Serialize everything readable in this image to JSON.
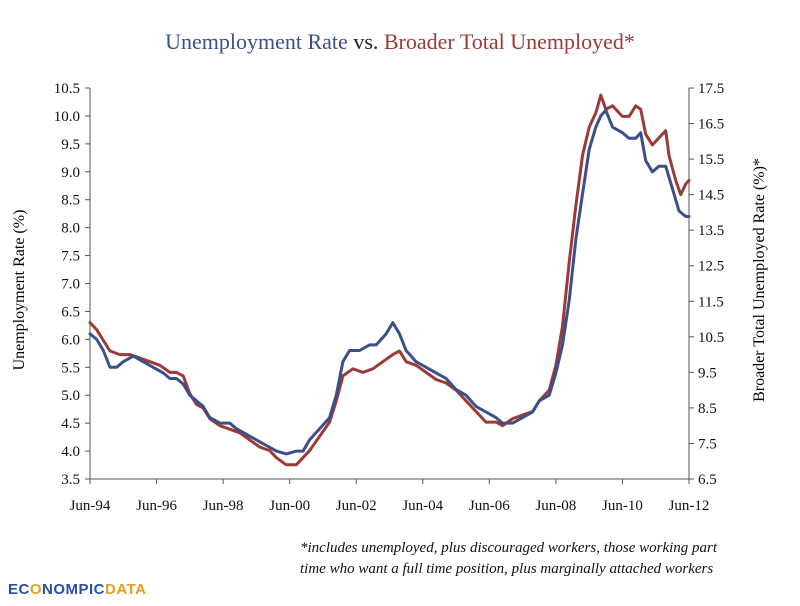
{
  "logo": {
    "part1": "EC",
    "part2": "O",
    "part3": "NOMPIC",
    "part4": "DATA"
  },
  "footnote": "*includes unemployed, plus discouraged workers, those working part time who want a full time position, plus marginally attached workers",
  "colors": {
    "series1": "#3b4f8a",
    "series2": "#9c3a36",
    "axis": "#555555",
    "logo_blue": "#2a4fa0",
    "logo_orange": "#e0a020"
  },
  "chart_data": {
    "type": "line",
    "title": "",
    "title_parts": [
      {
        "text": "Unemployment Rate",
        "color": "#3b4f8a"
      },
      {
        "text": " vs. ",
        "color": "#222222"
      },
      {
        "text": "Broader Total Unemployed*",
        "color": "#9c3a36"
      }
    ],
    "xlabel": "",
    "ylabel_left": "Unemployment Rate (%)",
    "ylabel_right": "Broader Total Unemployed Rate (%)*",
    "x_tick_labels": [
      "Jun-94",
      "Jun-96",
      "Jun-98",
      "Jun-00",
      "Jun-02",
      "Jun-04",
      "Jun-06",
      "Jun-08",
      "Jun-10",
      "Jun-12"
    ],
    "x_range": [
      1994.4,
      2012.4
    ],
    "ylim_left": [
      3.5,
      10.5
    ],
    "ylim_right": [
      6.5,
      17.5
    ],
    "y_ticks_left": [
      "3.5",
      "4.0",
      "4.5",
      "5.0",
      "5.5",
      "6.0",
      "6.5",
      "7.0",
      "7.5",
      "8.0",
      "8.5",
      "9.0",
      "9.5",
      "10.0",
      "10.5"
    ],
    "y_ticks_right": [
      "6.5",
      "7.5",
      "8.5",
      "9.5",
      "10.5",
      "11.5",
      "12.5",
      "13.5",
      "14.5",
      "15.5",
      "16.5",
      "17.5"
    ],
    "grid": false,
    "legend": "none",
    "series": [
      {
        "axis": "left",
        "points": [
          [
            1994.4,
            6.1
          ],
          [
            1994.6,
            6.0
          ],
          [
            1994.8,
            5.8
          ],
          [
            1995.0,
            5.5
          ],
          [
            1995.2,
            5.5
          ],
          [
            1995.4,
            5.6
          ],
          [
            1995.7,
            5.7
          ],
          [
            1996.0,
            5.6
          ],
          [
            1996.3,
            5.5
          ],
          [
            1996.6,
            5.4
          ],
          [
            1996.8,
            5.3
          ],
          [
            1997.0,
            5.3
          ],
          [
            1997.2,
            5.2
          ],
          [
            1997.4,
            5.0
          ],
          [
            1997.6,
            4.9
          ],
          [
            1997.8,
            4.8
          ],
          [
            1998.0,
            4.6
          ],
          [
            1998.3,
            4.5
          ],
          [
            1998.6,
            4.5
          ],
          [
            1998.8,
            4.4
          ],
          [
            1999.1,
            4.3
          ],
          [
            1999.4,
            4.2
          ],
          [
            1999.7,
            4.1
          ],
          [
            2000.0,
            4.0
          ],
          [
            2000.3,
            3.95
          ],
          [
            2000.6,
            4.0
          ],
          [
            2000.8,
            4.0
          ],
          [
            2001.0,
            4.2
          ],
          [
            2001.3,
            4.4
          ],
          [
            2001.6,
            4.6
          ],
          [
            2001.8,
            5.0
          ],
          [
            2002.0,
            5.6
          ],
          [
            2002.2,
            5.8
          ],
          [
            2002.5,
            5.8
          ],
          [
            2002.8,
            5.9
          ],
          [
            2003.0,
            5.9
          ],
          [
            2003.3,
            6.1
          ],
          [
            2003.5,
            6.3
          ],
          [
            2003.7,
            6.1
          ],
          [
            2003.9,
            5.8
          ],
          [
            2004.2,
            5.6
          ],
          [
            2004.5,
            5.5
          ],
          [
            2004.8,
            5.4
          ],
          [
            2005.1,
            5.3
          ],
          [
            2005.4,
            5.1
          ],
          [
            2005.7,
            5.0
          ],
          [
            2006.0,
            4.8
          ],
          [
            2006.3,
            4.7
          ],
          [
            2006.6,
            4.6
          ],
          [
            2006.8,
            4.5
          ],
          [
            2007.1,
            4.5
          ],
          [
            2007.4,
            4.6
          ],
          [
            2007.7,
            4.7
          ],
          [
            2007.9,
            4.9
          ],
          [
            2008.2,
            5.0
          ],
          [
            2008.4,
            5.4
          ],
          [
            2008.6,
            5.9
          ],
          [
            2008.8,
            6.7
          ],
          [
            2009.0,
            7.8
          ],
          [
            2009.2,
            8.6
          ],
          [
            2009.4,
            9.4
          ],
          [
            2009.6,
            9.8
          ],
          [
            2009.75,
            10.0
          ],
          [
            2009.9,
            10.1
          ],
          [
            2010.1,
            9.8
          ],
          [
            2010.4,
            9.7
          ],
          [
            2010.6,
            9.6
          ],
          [
            2010.8,
            9.6
          ],
          [
            2010.95,
            9.7
          ],
          [
            2011.1,
            9.2
          ],
          [
            2011.3,
            9.0
          ],
          [
            2011.5,
            9.1
          ],
          [
            2011.7,
            9.1
          ],
          [
            2011.9,
            8.7
          ],
          [
            2012.1,
            8.3
          ],
          [
            2012.3,
            8.2
          ],
          [
            2012.4,
            8.2
          ]
        ]
      },
      {
        "axis": "right",
        "points": [
          [
            1994.4,
            10.9
          ],
          [
            1994.6,
            10.7
          ],
          [
            1994.8,
            10.4
          ],
          [
            1995.0,
            10.1
          ],
          [
            1995.3,
            10.0
          ],
          [
            1995.6,
            10.0
          ],
          [
            1995.9,
            9.9
          ],
          [
            1996.2,
            9.8
          ],
          [
            1996.5,
            9.7
          ],
          [
            1996.8,
            9.5
          ],
          [
            1997.0,
            9.5
          ],
          [
            1997.2,
            9.4
          ],
          [
            1997.4,
            8.9
          ],
          [
            1997.6,
            8.6
          ],
          [
            1997.8,
            8.5
          ],
          [
            1998.0,
            8.2
          ],
          [
            1998.3,
            8.0
          ],
          [
            1998.6,
            7.9
          ],
          [
            1998.9,
            7.8
          ],
          [
            1999.2,
            7.6
          ],
          [
            1999.5,
            7.4
          ],
          [
            1999.8,
            7.3
          ],
          [
            2000.0,
            7.1
          ],
          [
            2000.3,
            6.9
          ],
          [
            2000.6,
            6.9
          ],
          [
            2000.8,
            7.1
          ],
          [
            2001.0,
            7.3
          ],
          [
            2001.3,
            7.7
          ],
          [
            2001.6,
            8.1
          ],
          [
            2001.8,
            8.7
          ],
          [
            2002.0,
            9.4
          ],
          [
            2002.3,
            9.6
          ],
          [
            2002.6,
            9.5
          ],
          [
            2002.9,
            9.6
          ],
          [
            2003.2,
            9.8
          ],
          [
            2003.5,
            10.0
          ],
          [
            2003.7,
            10.1
          ],
          [
            2003.9,
            9.8
          ],
          [
            2004.2,
            9.7
          ],
          [
            2004.5,
            9.5
          ],
          [
            2004.8,
            9.3
          ],
          [
            2005.1,
            9.2
          ],
          [
            2005.4,
            9.0
          ],
          [
            2005.7,
            8.7
          ],
          [
            2006.0,
            8.4
          ],
          [
            2006.3,
            8.1
          ],
          [
            2006.6,
            8.1
          ],
          [
            2006.8,
            8.0
          ],
          [
            2007.1,
            8.2
          ],
          [
            2007.4,
            8.3
          ],
          [
            2007.7,
            8.4
          ],
          [
            2007.9,
            8.7
          ],
          [
            2008.2,
            9.0
          ],
          [
            2008.4,
            9.7
          ],
          [
            2008.6,
            10.8
          ],
          [
            2008.8,
            12.6
          ],
          [
            2009.0,
            14.2
          ],
          [
            2009.2,
            15.6
          ],
          [
            2009.4,
            16.4
          ],
          [
            2009.6,
            16.8
          ],
          [
            2009.75,
            17.3
          ],
          [
            2009.9,
            16.9
          ],
          [
            2010.1,
            17.0
          ],
          [
            2010.4,
            16.7
          ],
          [
            2010.6,
            16.7
          ],
          [
            2010.8,
            17.0
          ],
          [
            2010.95,
            16.9
          ],
          [
            2011.1,
            16.2
          ],
          [
            2011.3,
            15.9
          ],
          [
            2011.5,
            16.1
          ],
          [
            2011.7,
            16.3
          ],
          [
            2011.8,
            15.6
          ],
          [
            2012.0,
            14.9
          ],
          [
            2012.15,
            14.5
          ],
          [
            2012.3,
            14.8
          ],
          [
            2012.4,
            14.9
          ]
        ]
      }
    ]
  }
}
